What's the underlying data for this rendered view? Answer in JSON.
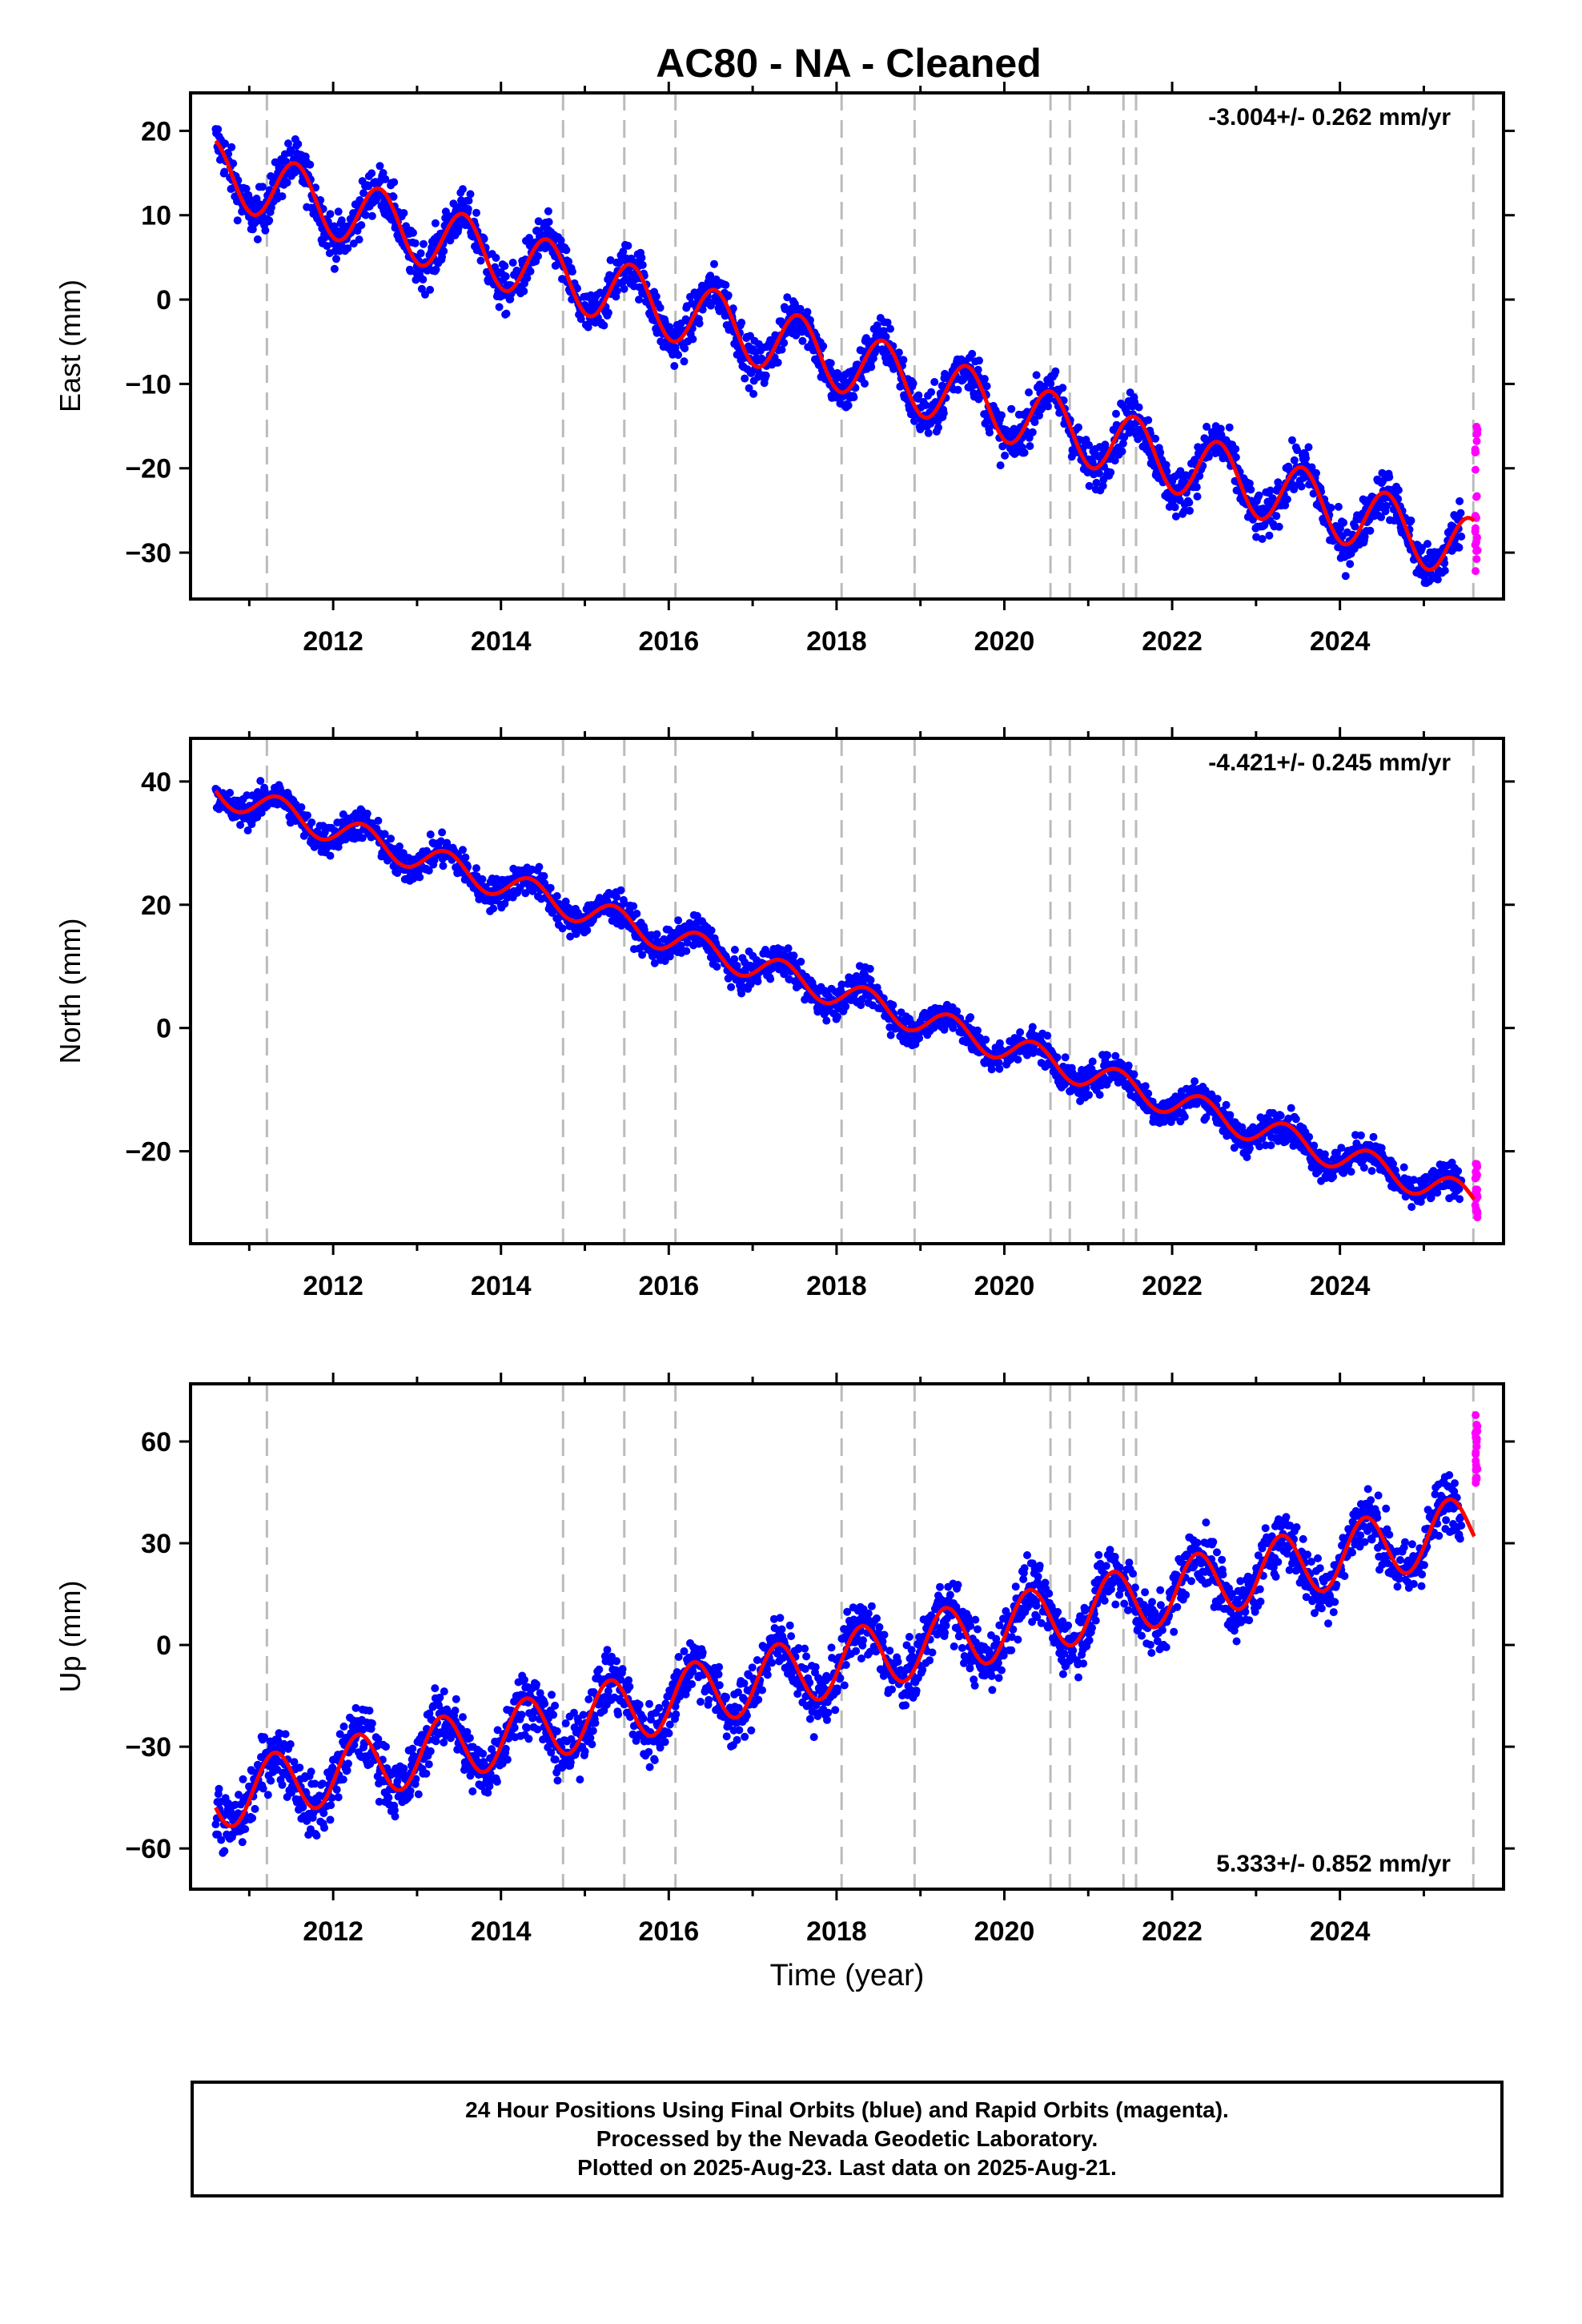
{
  "title": "AC80  - NA - Cleaned",
  "footer": {
    "line1": "24 Hour Positions Using Final Orbits (blue) and Rapid Orbits (magenta).",
    "line2": "Processed by the Nevada Geodetic Laboratory.",
    "line3": "Plotted on 2025-Aug-23. Last data on 2025-Aug-21."
  },
  "colors": {
    "final_orbits": "#0000ff",
    "rapid_orbits": "#ff00ff",
    "model": "#ff0000",
    "event_lines": "#bbbbbb"
  },
  "chart_data": [
    {
      "type": "scatter",
      "component": "East",
      "ylabel": "East (mm)",
      "velocity_label": "-3.004+/- 0.262 mm/yr",
      "velocity_label_position": "top-right",
      "xlim": [
        2010.3,
        2025.95
      ],
      "ylim": [
        -35.5,
        24.5
      ],
      "x_ticks": [
        2012,
        2014,
        2016,
        2018,
        2020,
        2022,
        2024
      ],
      "y_ticks": [
        -30,
        -20,
        -10,
        0,
        10,
        20
      ],
      "rate": -3.004,
      "seasonal_amplitude": 3.8,
      "seasonal_phase": 0.3,
      "offset_at_2010_6": 15.2,
      "scatter_sd": 1.4,
      "rapid_orbit_span": [
        2025.45,
        2025.64
      ],
      "rapid_orbit_values": [
        -15,
        -33
      ]
    },
    {
      "type": "scatter",
      "component": "North",
      "ylabel": "North (mm)",
      "velocity_label": "-4.421+/- 0.245 mm/yr",
      "velocity_label_position": "top-right",
      "xlim": [
        2010.3,
        2025.95
      ],
      "ylim": [
        -35,
        47
      ],
      "x_ticks": [
        2012,
        2014,
        2016,
        2018,
        2020,
        2022,
        2024
      ],
      "y_ticks": [
        -20,
        0,
        20,
        40
      ],
      "rate": -4.421,
      "seasonal_amplitude": 2.3,
      "seasonal_phase": 0.1,
      "offset_at_2010_6": 38.5,
      "scatter_sd": 1.3,
      "rapid_orbit_span": [
        2025.45,
        2025.64
      ],
      "rapid_orbit_values": [
        -22,
        -31
      ]
    },
    {
      "type": "scatter",
      "component": "Up",
      "ylabel": "Up (mm)",
      "xlabel": "Time (year)",
      "velocity_label": "5.333+/- 0.852 mm/yr",
      "velocity_label_position": "bottom-right",
      "xlim": [
        2010.3,
        2025.95
      ],
      "ylim": [
        -72,
        77
      ],
      "x_ticks": [
        2012,
        2014,
        2016,
        2018,
        2020,
        2022,
        2024
      ],
      "y_ticks": [
        -60,
        -30,
        0,
        30,
        60
      ],
      "rate": 5.333,
      "seasonal_amplitude": 9.5,
      "seasonal_phase": 0.05,
      "offset_at_2010_6": -45,
      "scatter_sd": 4.5,
      "rapid_orbit_span": [
        2025.45,
        2025.64
      ],
      "rapid_orbit_values": [
        47,
        68
      ]
    }
  ],
  "event_lines": [
    2011.21,
    2014.74,
    2015.47,
    2016.08,
    2018.06,
    2018.93,
    2020.55,
    2020.78,
    2021.42,
    2021.57,
    2025.59
  ]
}
